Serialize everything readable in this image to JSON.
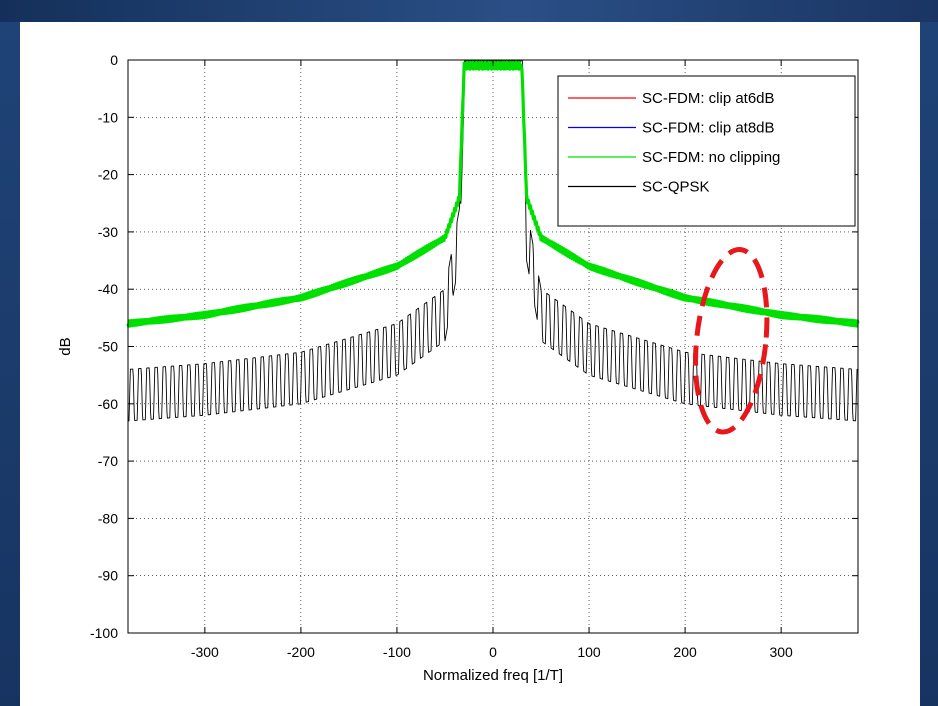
{
  "chart_data": {
    "type": "line",
    "xlabel": "Normalized freq [1/T]",
    "ylabel": "dB",
    "xlim": [
      -380,
      380
    ],
    "ylim": [
      -100,
      0
    ],
    "xticks": [
      -300,
      -200,
      -100,
      0,
      100,
      200,
      300
    ],
    "yticks": [
      0,
      -10,
      -20,
      -30,
      -40,
      -50,
      -60,
      -70,
      -80,
      -90,
      -100
    ],
    "grid": true,
    "legend_position": "top-right",
    "series": [
      {
        "name": "SC-FDM: clip at6dB",
        "color": "#ff0000",
        "x": [
          -380,
          -300,
          -200,
          -100,
          -50,
          -35,
          -30,
          0,
          30,
          35,
          50,
          100,
          200,
          300,
          380
        ],
        "y": [
          -46,
          -44.5,
          -41.5,
          -36,
          -31,
          -24,
          -1,
          -1,
          -1,
          -24,
          -31,
          -36,
          -41.5,
          -44.5,
          -46
        ]
      },
      {
        "name": "SC-FDM: clip at8dB",
        "color": "#0000ff",
        "x": [
          -380,
          -300,
          -200,
          -100,
          -50,
          -35,
          -30,
          0,
          30,
          35,
          50,
          100,
          200,
          300,
          380
        ],
        "y": [
          -46,
          -44.5,
          -41.5,
          -36,
          -31,
          -24,
          -1,
          -1,
          -1,
          -24,
          -31,
          -36,
          -41.5,
          -44.5,
          -46
        ]
      },
      {
        "name": "SC-FDM: no clipping",
        "color": "#00e000",
        "x": [
          -380,
          -300,
          -200,
          -100,
          -50,
          -35,
          -30,
          0,
          30,
          35,
          50,
          100,
          200,
          300,
          380
        ],
        "y": [
          -46,
          -44.5,
          -41.5,
          -36,
          -31,
          -24,
          -1,
          -1,
          -1,
          -24,
          -31,
          -36,
          -41.5,
          -44.5,
          -46
        ]
      },
      {
        "name": "SC-QPSK",
        "color": "#000000",
        "x": [
          -380,
          -300,
          -200,
          -100,
          -50,
          -35,
          -30,
          0,
          30,
          35,
          50,
          100,
          200,
          300,
          380
        ],
        "y": [
          -58,
          -57,
          -55,
          -50,
          -44,
          -30,
          -1,
          0,
          -1,
          -30,
          -44,
          -50,
          -55,
          -57,
          -58
        ],
        "ripple_db": 9,
        "ripple_period": 8.5
      }
    ],
    "annotations": [
      {
        "type": "dashed-ellipse",
        "color": "#e8171b",
        "center": [
          248,
          -49
        ],
        "rx": 36,
        "ry": 16
      }
    ]
  }
}
